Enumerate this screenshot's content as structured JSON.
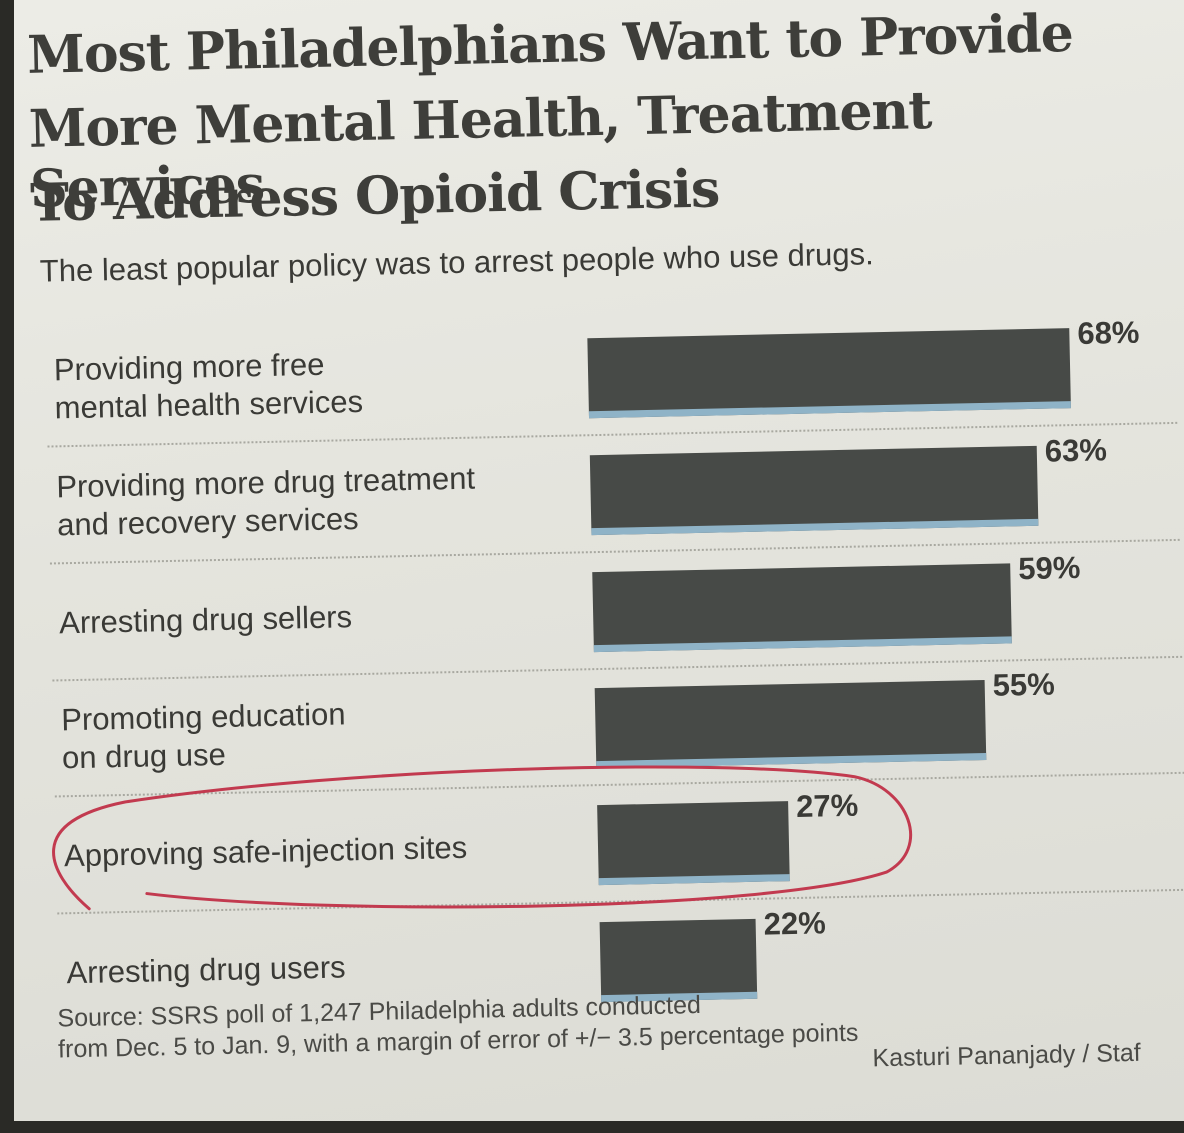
{
  "chart_data": {
    "type": "bar",
    "orientation": "horizontal",
    "title": [
      "Most Philadelphians Want to Provide",
      "More Mental Health, Treatment Services",
      "To Address Opioid Crisis"
    ],
    "subtitle": "The least popular policy was to arrest people who use drugs.",
    "categories": [
      [
        "Providing more free",
        "mental health services"
      ],
      [
        "Providing more drug treatment",
        "and recovery services"
      ],
      [
        "Arresting drug sellers"
      ],
      [
        "Promoting education",
        "on drug use"
      ],
      [
        "Approving safe-injection sites"
      ],
      [
        "Arresting drug users"
      ]
    ],
    "values": [
      68,
      63,
      59,
      55,
      27,
      22
    ],
    "value_labels": [
      "68%",
      "63%",
      "59%",
      "55%",
      "27%",
      "22%"
    ],
    "unit": "%",
    "xlim": [
      0,
      68
    ],
    "highlighted_index": 4,
    "colors": {
      "bar": "#474a47",
      "bar_base": "#8fb3c7",
      "highlight_circle": "#c23a4f"
    }
  },
  "footer": {
    "source_lines": [
      "Source: SSRS poll of 1,247 Philadelphia adults conducted",
      "from Dec. 5 to Jan. 9, with a margin of error of +/− 3.5 percentage points"
    ],
    "credit": "Kasturi Pananjady / Staf"
  }
}
